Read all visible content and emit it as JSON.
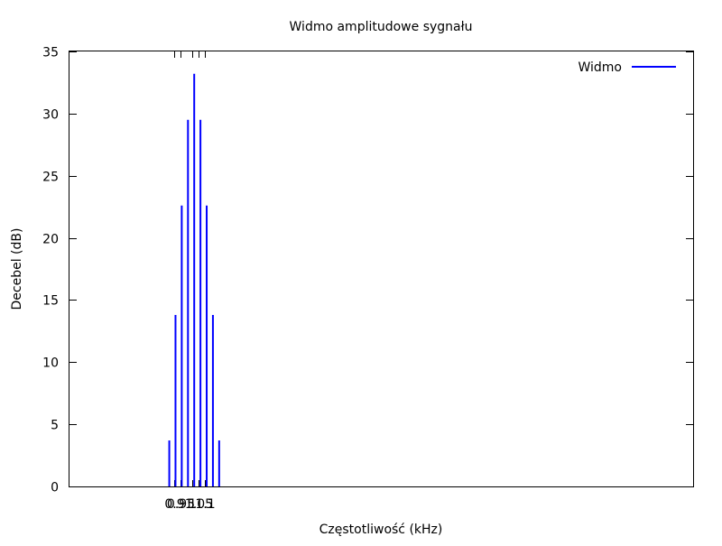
{
  "chart_data": {
    "type": "bar",
    "title": "Widmo amplitudowe sygnału",
    "xlabel": "Częstotliwość (kHz)",
    "ylabel": "Decebel (dB)",
    "xlim": [
      0,
      10
    ],
    "ylim": [
      0,
      35
    ],
    "yticks": [
      0,
      5,
      10,
      15,
      20,
      25,
      30,
      35
    ],
    "xtick_labels": [
      {
        "value": 0.9,
        "label": "0.9"
      },
      {
        "value": 0.95,
        "label": "0.95"
      },
      {
        "value": 1.0,
        "label": "1"
      },
      {
        "value": 1.05,
        "label": "1.05"
      },
      {
        "value": 1.1,
        "label": "1.1"
      }
    ],
    "series": [
      {
        "name": "Widmo",
        "color": "#0000ff",
        "x": [
          1.6,
          1.7,
          1.8,
          1.9,
          2.0,
          2.1,
          2.2,
          2.3,
          2.4
        ],
        "values": [
          3.7,
          13.8,
          22.6,
          29.5,
          33.2,
          29.5,
          22.6,
          13.8,
          3.7
        ]
      }
    ],
    "legend": {
      "position": "top-right"
    },
    "grid": false
  }
}
